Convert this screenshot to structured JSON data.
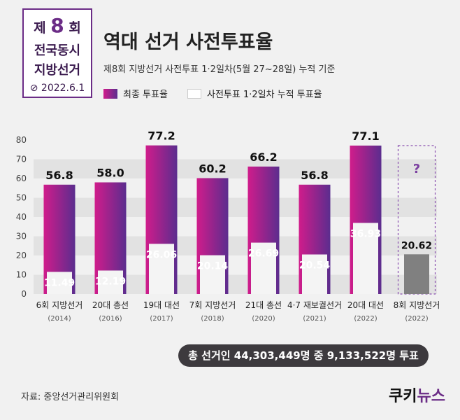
{
  "logo": {
    "prefix": "제",
    "number": "8",
    "suffix": "회",
    "line2": "전국동시",
    "line3": "지방선거",
    "date": "2022.6.1"
  },
  "title": "역대 선거 사전투표율",
  "subtitle": "제8회 지방선거 사전투표 1·2일차(5월 27~28일) 누적 기준",
  "legend": {
    "final": "최종 투표율",
    "early": "사전투표 1·2일차 누적 투표율"
  },
  "colors": {
    "final_start": "#d01c8b",
    "final_end": "#5b2d8e",
    "early": "#f4f4f4",
    "current_early": "#808080",
    "question": "#7b3fa0"
  },
  "chart_data": {
    "type": "bar",
    "categories": [
      "6회 지방선거",
      "20대 총선",
      "19대 대선",
      "7회 지방선거",
      "21대 총선",
      "4·7 재보궐선거",
      "20대 대선",
      "8회 지방선거"
    ],
    "years": [
      "(2014)",
      "(2016)",
      "(2017)",
      "(2018)",
      "(2020)",
      "(2021)",
      "(2022)",
      "(2022)"
    ],
    "series": [
      {
        "name": "최종 투표율",
        "values": [
          56.8,
          58.0,
          77.2,
          60.2,
          66.2,
          56.8,
          77.1,
          null
        ],
        "labels": [
          "56.8",
          "58.0",
          "77.2",
          "60.2",
          "66.2",
          "56.8",
          "77.1",
          "?"
        ]
      },
      {
        "name": "사전투표 1·2일차 누적 투표율",
        "values": [
          11.49,
          12.19,
          26.06,
          20.14,
          26.69,
          20.54,
          36.93,
          20.62
        ],
        "labels": [
          "11.49",
          "12.19",
          "26.06",
          "20.14",
          "26.69",
          "20.54",
          "36.93",
          "20.62"
        ]
      }
    ],
    "yticks": [
      "0",
      "10",
      "20",
      "30",
      "40",
      "50",
      "60",
      "70",
      "80"
    ],
    "ylim": [
      0,
      80
    ],
    "grid": "alternating bands"
  },
  "total_note": "총 선거인 44,303,449명 중 9,133,522명 투표",
  "source": "자료: 중앙선거관리위원회",
  "brand": {
    "part1": "쿠키",
    "part2": "뉴스"
  }
}
